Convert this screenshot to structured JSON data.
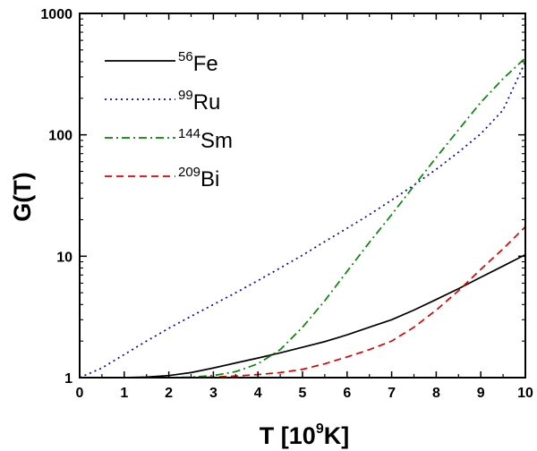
{
  "chart_data": {
    "type": "line",
    "title": "",
    "xlabel": "T [10^9K]",
    "xlabel_main": "T [10",
    "xlabel_sup": "9",
    "xlabel_tail": "K]",
    "ylabel": "G(T)",
    "xlim": [
      0,
      10
    ],
    "ylim": [
      1,
      1000
    ],
    "yscale": "log",
    "x_ticks": [
      0,
      1,
      2,
      3,
      4,
      5,
      6,
      7,
      8,
      9,
      10
    ],
    "x_tick_labels": [
      "0",
      "1",
      "2",
      "3",
      "4",
      "5",
      "6",
      "7",
      "8",
      "9",
      "10"
    ],
    "y_ticks": [
      1,
      10,
      100,
      1000
    ],
    "y_tick_labels": [
      "1",
      "10",
      "100",
      "1000"
    ],
    "grid": false,
    "legend_position": "top-left",
    "x": [
      0.0,
      0.5,
      1.0,
      1.5,
      2.0,
      2.5,
      3.0,
      3.5,
      4.0,
      4.5,
      5.0,
      5.5,
      6.0,
      6.5,
      7.0,
      7.5,
      8.0,
      8.5,
      9.0,
      9.5,
      10.0
    ],
    "series": [
      {
        "name": "56Fe",
        "label_sup": "56",
        "label_main": "Fe",
        "color": "#000000",
        "dash": "solid",
        "values": [
          1.0,
          1.0,
          1.0,
          1.01,
          1.04,
          1.1,
          1.2,
          1.32,
          1.45,
          1.6,
          1.78,
          1.98,
          2.25,
          2.6,
          3.0,
          3.6,
          4.4,
          5.4,
          6.7,
          8.3,
          10.3
        ]
      },
      {
        "name": "99Ru",
        "label_sup": "99",
        "label_main": "Ru",
        "color": "#0000cc",
        "dash": "dotted",
        "values": [
          1.0,
          1.2,
          1.55,
          2.0,
          2.55,
          3.2,
          4.0,
          5.0,
          6.3,
          8.0,
          10.2,
          13.2,
          17.0,
          22.0,
          29.0,
          38.5,
          52.0,
          72.0,
          102.0,
          160.0,
          400.0
        ]
      },
      {
        "name": "144Sm",
        "label_sup": "144",
        "label_main": "Sm",
        "color": "#008800",
        "dash": "dashdot",
        "values": [
          1.0,
          1.0,
          1.0,
          1.0,
          1.0,
          1.01,
          1.04,
          1.12,
          1.3,
          1.7,
          2.6,
          4.3,
          7.5,
          13.0,
          22.0,
          38.0,
          65.0,
          110.0,
          185.0,
          290.0,
          430.0
        ]
      },
      {
        "name": "209Bi",
        "label_sup": "209",
        "label_main": "Bi",
        "color": "#dd0000",
        "dash": "dashed",
        "values": [
          1.0,
          1.0,
          1.0,
          1.0,
          1.0,
          1.0,
          1.01,
          1.03,
          1.06,
          1.1,
          1.17,
          1.3,
          1.48,
          1.7,
          2.0,
          2.6,
          3.6,
          5.2,
          7.8,
          11.5,
          17.5
        ]
      }
    ]
  }
}
